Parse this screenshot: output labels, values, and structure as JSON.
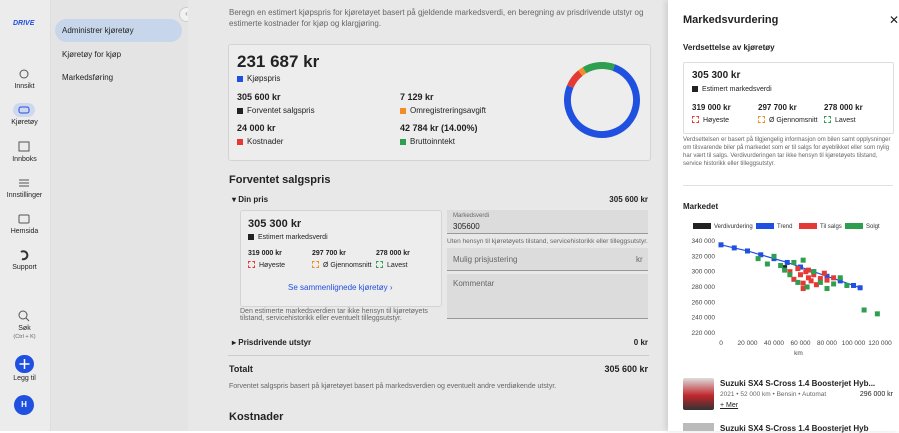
{
  "sidebar": {
    "logo": "DRIVE",
    "nav": [
      "Innsikt",
      "Kjøretøy",
      "Innboks",
      "Innstillinger",
      "Hemsida",
      "Support"
    ],
    "search": "Søk",
    "search_shortcut": "(Ctrl + K)",
    "add": "Legg til",
    "avatar": "H"
  },
  "subnav": [
    "Administrer kjøretøy",
    "Kjøretøy for kjøp",
    "Markedsføring"
  ],
  "main": {
    "intro": "Beregn en estimert kjøpspris for kjøretøyet basert på gjeldende markedsverdi, en beregning av prisdrivende utstyr og estimerte kostnader for kjøp og klargjøring.",
    "summary": {
      "segments": [
        {
          "name": "Kjøpspris",
          "value": 231687,
          "label": "231 687 kr",
          "color": "#2050e0"
        },
        {
          "name": "Kostnader",
          "value": 24000,
          "label": "24 000 kr",
          "color": "#e53935"
        },
        {
          "name": "Omregistreringsavgift",
          "value": 7129,
          "label": "7 129 kr",
          "color": "#f28c28"
        },
        {
          "name": "Bruttoinntekt",
          "value": 42784,
          "label": "42 784 kr (14.00%)",
          "color": "#2e9e4f"
        }
      ],
      "expected": {
        "name": "Forventet salgspris",
        "label": "305 600 kr",
        "color": "#222222"
      }
    },
    "sales": {
      "heading": "Forventet salgspris",
      "your_price": "Din pris",
      "your_price_value": "305 600 kr",
      "estimate": {
        "value": "305 300 kr",
        "label": "Estimert markedsverdi",
        "highest": "319 000 kr",
        "highest_label": "Høyeste",
        "average": "297 700 kr",
        "average_label": "Ø Gjennomsnitt",
        "lowest": "278 000 kr",
        "lowest_label": "Lavest",
        "link": "Se sammenlignede kjøretøy"
      },
      "note": "Den estimerte markedsverdien tar ikke hensyn til kjøretøyets tilstand, servicehistorikk eller eventuelt tilleggsutstyr.",
      "market_value_label": "Markedsverdi",
      "market_value": "305600",
      "market_value_help": "Uten hensyn til kjøretøyets tilstand, servicehistorikk eller tilleggsutstyr.",
      "adjust_placeholder": "Mulig prisjustering",
      "adjust_unit": "kr",
      "comment_placeholder": "Kommentar",
      "equipment": "Prisdrivende utstyr",
      "equipment_value": "0 kr",
      "total": "Totalt",
      "total_value": "305 600 kr",
      "total_note": "Forventet salgspris basert på kjøretøyet basert på markedsverdien og eventuelt andre verdiøkende utstyr."
    },
    "costs_heading": "Kostnader"
  },
  "panel": {
    "title": "Markedsvurdering",
    "valuation_heading": "Verdsettelse av kjøretøy",
    "estimate": {
      "value": "305 300 kr",
      "label": "Estimert markedsverdi",
      "highest": "319 000 kr",
      "highest_label": "Høyeste",
      "average": "297 700 kr",
      "average_label": "Ø Gjennomsnitt",
      "lowest": "278 000 kr",
      "lowest_label": "Lavest"
    },
    "disclaimer": "Verdsettelsen er basert på tilgjengelig informasjon om bilen samt opplysninger om tilsvarende biler på markedet som er til salgs for øyeblikket eller som nylig har vært til salgs. Verdivurderingen tar ikke hensyn til kjøretøyets tilstand, service historikk eller tilleggsutstyr.",
    "market_heading": "Markedet",
    "chart": {
      "type": "scatter",
      "xlabel": "km",
      "xlim": [
        0,
        120000
      ],
      "ylim": [
        220000,
        340000
      ],
      "xticks": [
        0,
        {
          "value": 20000,
          "label": "20 000"
        },
        {
          "value": 40000,
          "label": "40 000"
        },
        {
          "value": 60000,
          "label": "60 000"
        },
        {
          "value": 80000,
          "label": "80 000"
        },
        {
          "value": 100000,
          "label": "100 000"
        },
        {
          "value": 120000,
          "label": "120 000"
        }
      ],
      "yticks": [
        {
          "value": 220000,
          "label": "220 000"
        },
        {
          "value": 240000,
          "label": "240 000"
        },
        {
          "value": 260000,
          "label": "260 000"
        },
        {
          "value": 280000,
          "label": "280 000"
        },
        {
          "value": 300000,
          "label": "300 000"
        },
        {
          "value": 320000,
          "label": "320 000"
        },
        {
          "value": 340000,
          "label": "340 000"
        }
      ],
      "series": [
        {
          "name": "Verdivurdering",
          "color": "#222222",
          "x": [
            48000
          ],
          "y": [
            305300
          ]
        },
        {
          "name": "Trend",
          "color": "#2050e0",
          "style": "line",
          "x": [
            0,
            10000,
            20000,
            30000,
            40000,
            50000,
            60000,
            70000,
            80000,
            90000,
            100000,
            105000
          ],
          "y": [
            335000,
            331000,
            327000,
            322000,
            317000,
            312000,
            306000,
            300000,
            294000,
            288000,
            282000,
            279000
          ]
        },
        {
          "name": "Til salgs",
          "color": "#e53935",
          "x": [
            52000,
            55000,
            58000,
            60000,
            62000,
            64000,
            66000,
            68000,
            70000,
            72000,
            75000,
            78000,
            80000,
            85000,
            62000,
            66000
          ],
          "y": [
            300000,
            290000,
            304000,
            296000,
            285000,
            300000,
            292000,
            288000,
            296000,
            283000,
            291000,
            298000,
            289000,
            292000,
            278000,
            302000
          ]
        },
        {
          "name": "Solgt",
          "color": "#2e9e4f",
          "x": [
            28000,
            35000,
            40000,
            45000,
            48000,
            52000,
            55000,
            58000,
            62000,
            65000,
            70000,
            75000,
            80000,
            85000,
            90000,
            95000,
            108000,
            118000
          ],
          "y": [
            317000,
            310000,
            320000,
            308000,
            302000,
            296000,
            312000,
            286000,
            315000,
            280000,
            300000,
            286000,
            278000,
            284000,
            292000,
            282000,
            250000,
            245000
          ]
        }
      ]
    },
    "listings": [
      {
        "title": "Suzuki SX4 S-Cross 1.4 Boosterjet Hyb...",
        "meta": "2021 • 52 000 km • Bensin • Automat",
        "price": "296 000 kr",
        "more": "+ Mer"
      },
      {
        "title": "Suzuki SX4 S-Cross 1.4 Boosterjet Hyb"
      }
    ]
  }
}
